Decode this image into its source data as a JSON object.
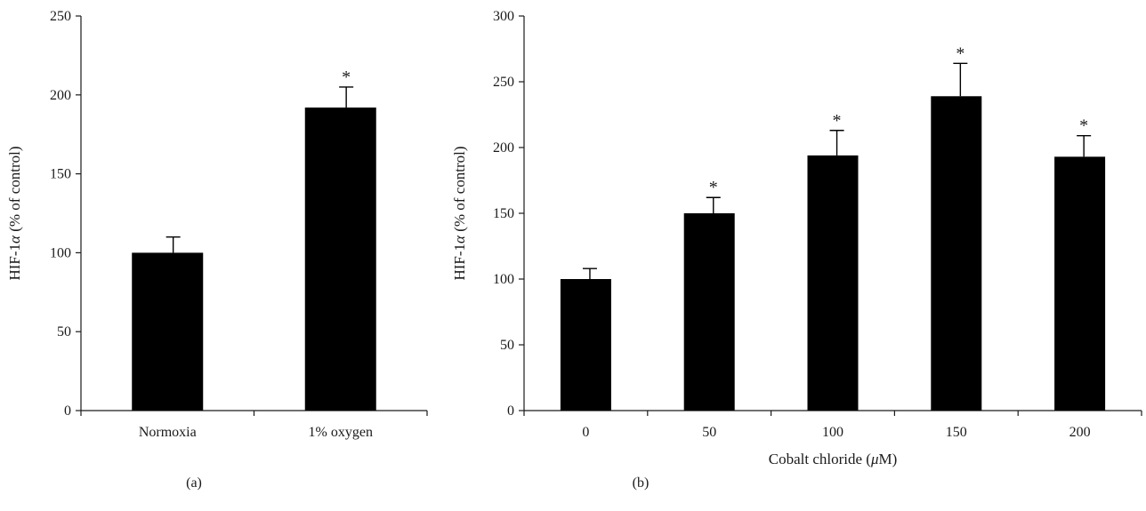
{
  "chart_data": [
    {
      "type": "bar",
      "panel_label": "(a)",
      "categories": [
        "Normoxia",
        "1% oxygen"
      ],
      "values": [
        100,
        192
      ],
      "errors": [
        10,
        13
      ],
      "significance": [
        "",
        "*"
      ],
      "ylabel_main": "HIF-1",
      "ylabel_symbol": "α",
      "ylabel_rest": " (% of control)",
      "xlabel_main": "",
      "xlabel_symbol": "",
      "xlabel_rest": "",
      "ylim": [
        0,
        250
      ],
      "yticks": [
        0,
        50,
        100,
        150,
        200,
        250
      ],
      "bar_color": "#000000",
      "grid": false
    },
    {
      "type": "bar",
      "panel_label": "(b)",
      "categories": [
        "0",
        "50",
        "100",
        "150",
        "200"
      ],
      "values": [
        100,
        150,
        194,
        239,
        193
      ],
      "errors": [
        8,
        12,
        19,
        25,
        16
      ],
      "significance": [
        "",
        "*",
        "*",
        "*",
        "*"
      ],
      "ylabel_main": "HIF-1",
      "ylabel_symbol": "α",
      "ylabel_rest": " (% of control)",
      "xlabel_main": "Cobalt chloride (",
      "xlabel_symbol": "μ",
      "xlabel_rest": "M)",
      "ylim": [
        0,
        300
      ],
      "yticks": [
        0,
        50,
        100,
        150,
        200,
        250,
        300
      ],
      "bar_color": "#000000",
      "grid": false
    }
  ]
}
